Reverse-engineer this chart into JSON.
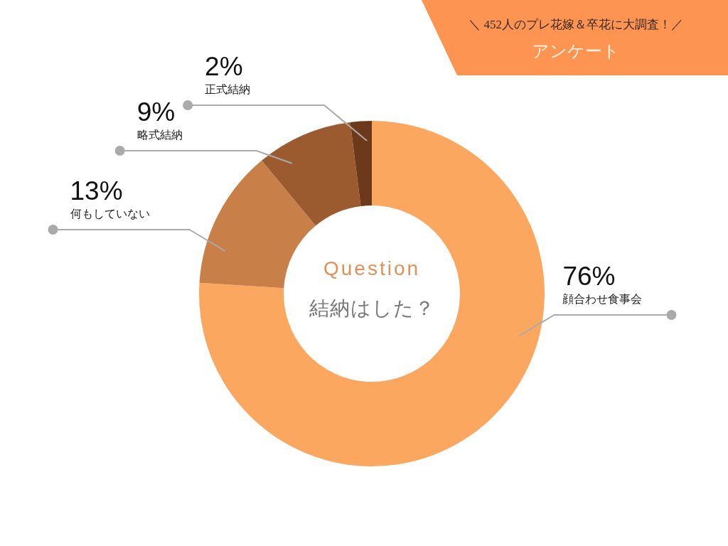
{
  "chart_data": {
    "type": "donut",
    "title": "＼ 452人のプレ花嫁＆卒花に大調査！／",
    "subtitle": "アンケート",
    "annotations": [
      "Question",
      "結納はした？"
    ],
    "categories": [
      "顔合わせ食事会",
      "何もしていない",
      "略式結納",
      "正式結納"
    ],
    "values": [
      76,
      13,
      9,
      2
    ],
    "colors": [
      "#fca75f",
      "#c98048",
      "#9c5b2f",
      "#6c3a1a"
    ],
    "value_labels": [
      "76%",
      "13%",
      "9%",
      "2%"
    ]
  }
}
